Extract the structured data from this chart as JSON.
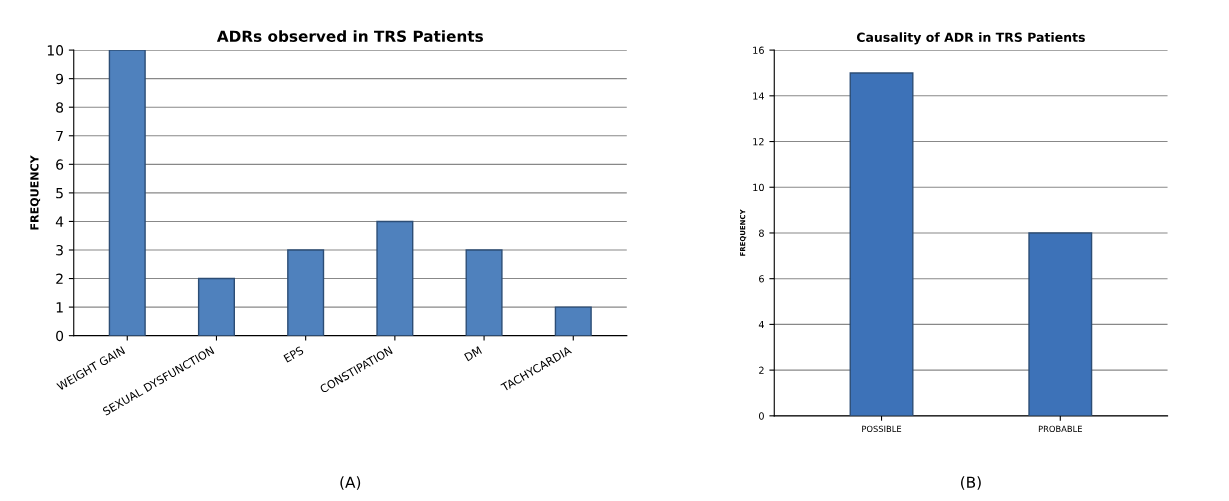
{
  "chart_data": [
    {
      "type": "bar",
      "title": "ADRs observed in TRS Patients",
      "ylabel": "FREQUENCY",
      "categories": [
        "WEIGHT GAIN",
        "SEXUAL DYSFUNCTION",
        "EPS",
        "CONSTIPATION",
        "DM",
        "TACHYCARDIA"
      ],
      "values": [
        10,
        2,
        3,
        4,
        3,
        1
      ],
      "color": "#4f81bd",
      "ylim": [
        0,
        10
      ],
      "yticks": [
        0,
        1,
        2,
        3,
        4,
        5,
        6,
        7,
        8,
        9,
        10
      ],
      "grid": "y",
      "annotations": [
        "(A)"
      ]
    },
    {
      "type": "bar",
      "title": "Causality of ADR in TRS Patients",
      "ylabel": "FREQUENCY",
      "categories": [
        "POSSIBLE",
        "PROBABLE"
      ],
      "values": [
        15,
        8
      ],
      "color": "#3d72b8",
      "ylim": [
        0,
        16
      ],
      "yticks": [
        0,
        2,
        4,
        6,
        8,
        10,
        12,
        14,
        16
      ],
      "grid": "y",
      "annotations": [
        "(B)"
      ]
    }
  ]
}
